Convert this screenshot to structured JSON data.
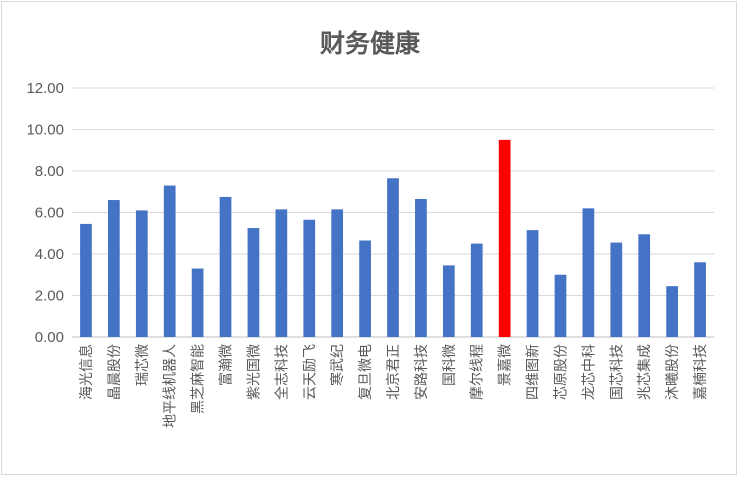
{
  "chart_data": {
    "type": "bar",
    "title": "财务健康",
    "xlabel": "",
    "ylabel": "",
    "ylim": [
      0,
      12
    ],
    "yticks": [
      "0.00",
      "2.00",
      "4.00",
      "6.00",
      "8.00",
      "10.00",
      "12.00"
    ],
    "grid": true,
    "categories": [
      "海光信息",
      "晶晨股份",
      "瑞芯微",
      "地平线机器人",
      "黑芝麻智能",
      "富瀚微",
      "紫光国微",
      "全志科技",
      "云天励飞",
      "寒武纪",
      "复旦微电",
      "北京君正",
      "安路科技",
      "国科微",
      "摩尔线程",
      "景嘉微",
      "四维图新",
      "芯原股份",
      "龙芯中科",
      "国芯科技",
      "兆芯集成",
      "沐曦股份",
      "嘉楠科技"
    ],
    "values": [
      5.45,
      6.6,
      6.1,
      7.3,
      3.3,
      6.75,
      5.25,
      6.15,
      5.65,
      6.15,
      4.65,
      7.65,
      6.65,
      3.45,
      4.5,
      9.5,
      5.15,
      3.0,
      6.2,
      4.55,
      4.95,
      2.45,
      3.6
    ],
    "colors": {
      "default": "#4472c4",
      "highlight": "#ff0000",
      "highlight_category": "景嘉微"
    }
  }
}
